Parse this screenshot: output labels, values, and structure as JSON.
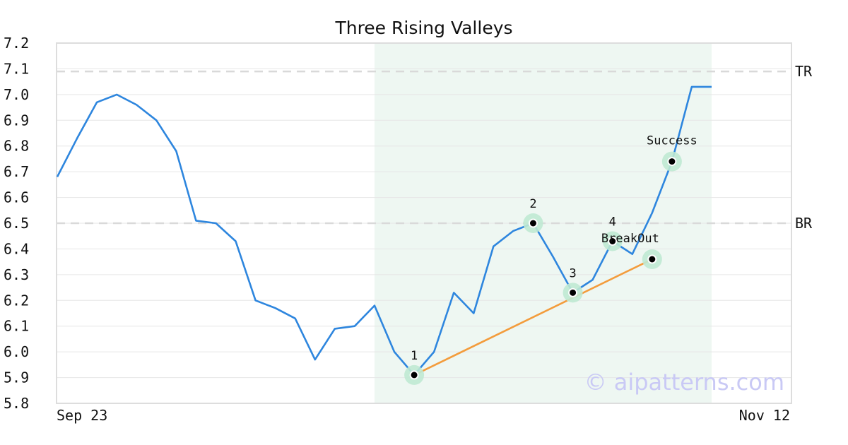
{
  "chart_data": {
    "type": "line",
    "title": "Three Rising Valleys",
    "x_tick_labels": [
      "Sep 23",
      "Nov 12"
    ],
    "ylim": [
      5.8,
      7.2
    ],
    "y_ticks": [
      "5.8",
      "5.9",
      "6.0",
      "6.1",
      "6.2",
      "6.3",
      "6.4",
      "6.5",
      "6.6",
      "6.7",
      "6.8",
      "6.9",
      "7.0",
      "7.1",
      "7.2"
    ],
    "grid": true,
    "series": [
      {
        "values": [
          6.68,
          6.83,
          6.97,
          7.0,
          6.96,
          6.9,
          6.78,
          6.51,
          6.5,
          6.43,
          6.2,
          6.17,
          6.13,
          5.97,
          6.09,
          6.1,
          6.18,
          6.0,
          5.91,
          6.0,
          6.23,
          6.15,
          6.41,
          6.47,
          6.5,
          6.37,
          6.23,
          6.28,
          6.43,
          6.38,
          6.54,
          6.74,
          7.03,
          7.03
        ],
        "color": "#2e86de"
      }
    ],
    "highlight_range": [
      16,
      33
    ],
    "reference_lines": [
      {
        "label": "TR",
        "value": 7.09
      },
      {
        "label": "BR",
        "value": 6.5
      }
    ],
    "trend_line": {
      "from": [
        18,
        5.91
      ],
      "to": [
        30,
        6.36
      ],
      "color": "#f39c3c"
    },
    "points": [
      {
        "label": "1",
        "index": 18,
        "value": 5.91
      },
      {
        "label": "2",
        "index": 24,
        "value": 6.5
      },
      {
        "label": "3",
        "index": 26,
        "value": 6.23
      },
      {
        "label": "4",
        "index": 28,
        "value": 6.43
      },
      {
        "label": "BreakOut",
        "index": 30,
        "value": 6.36
      },
      {
        "label": "Success",
        "index": 31,
        "value": 6.74
      }
    ],
    "watermark": "© aipatterns.com"
  }
}
